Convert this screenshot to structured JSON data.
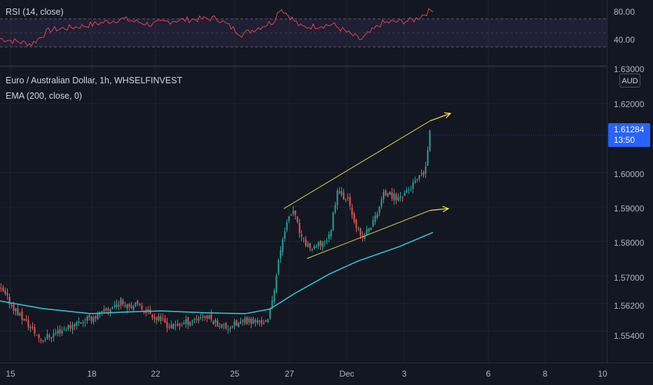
{
  "rsi_pane": {
    "title": "RSI (14, close)",
    "ticks": [
      {
        "label": "80.00",
        "value": 80
      },
      {
        "label": "40.00",
        "value": 40
      }
    ],
    "band": [
      30,
      70
    ],
    "midline": 50
  },
  "main_pane": {
    "title": "Euro / Australian Dollar, 1h, WHSELFINVEST",
    "indicator": "EMA (200, close, 0)",
    "currency": "AUD",
    "top_partial_tick": "1.63000",
    "price_ticks": [
      {
        "label": "1.62000",
        "value": 1.62
      },
      {
        "label": "1.60000",
        "value": 1.6
      },
      {
        "label": "1.59000",
        "value": 1.59
      },
      {
        "label": "1.58000",
        "value": 1.58
      },
      {
        "label": "1.57000",
        "value": 1.57
      },
      {
        "label": "1.56200",
        "value": 1.562
      },
      {
        "label": "1.55400",
        "value": 1.554
      }
    ],
    "last_price": "1.61284",
    "countdown": "13:50",
    "x_ticks": [
      "15",
      "18",
      "22",
      "25",
      "27",
      "Dec",
      "3",
      "6",
      "8",
      "10"
    ]
  },
  "colors": {
    "background": "#131722",
    "up_candle": "#26a69a",
    "down_candle": "#ef5350",
    "ema": "#2bc4d6",
    "rsi_line": "#e8424f",
    "rsi_band": "#7e57c2",
    "channel": "#d8d83a",
    "arrows": "#ffeb3b",
    "price_tag": "#2962ff"
  },
  "chart_data": {
    "type": "candlestick",
    "symbol": "EURAUD",
    "timeframe": "1h",
    "x_labels": [
      "15",
      "18",
      "22",
      "25",
      "27",
      "Dec",
      "3",
      "6",
      "8",
      "10"
    ],
    "y_range": [
      1.549,
      1.632
    ],
    "rsi_range": [
      27,
      92
    ],
    "close_path": [
      {
        "x": "15",
        "close": 1.565
      },
      {
        "x": "16",
        "close": 1.553
      },
      {
        "x": "17",
        "close": 1.556
      },
      {
        "x": "18",
        "close": 1.559
      },
      {
        "x": "19",
        "close": 1.562
      },
      {
        "x": "20",
        "close": 1.561
      },
      {
        "x": "22",
        "close": 1.56
      },
      {
        "x": "23",
        "close": 1.558
      },
      {
        "x": "24",
        "close": 1.56
      },
      {
        "x": "25",
        "close": 1.558
      },
      {
        "x": "26",
        "close": 1.562
      },
      {
        "x": "26.5",
        "close": 1.578
      },
      {
        "x": "27",
        "close": 1.59
      },
      {
        "x": "28",
        "close": 1.58
      },
      {
        "x": "29",
        "close": 1.579
      },
      {
        "x": "30",
        "close": 1.596
      },
      {
        "x": "Dec",
        "close": 1.581
      },
      {
        "x": "2",
        "close": 1.592
      },
      {
        "x": "3",
        "close": 1.598
      },
      {
        "x": "3.5",
        "close": 1.61284
      }
    ],
    "ema200_path": [
      1.5627,
      1.5605,
      1.559,
      1.5595,
      1.5598,
      1.5592,
      1.559,
      1.5603,
      1.5648,
      1.5705,
      1.5742,
      1.5785,
      1.5826
    ],
    "rsi_path": [
      42,
      34,
      54,
      60,
      70,
      62,
      68,
      71,
      48,
      66,
      86,
      58,
      62,
      40,
      64,
      68,
      84
    ],
    "channel_upper": [
      {
        "x": "27",
        "price": 1.5895
      },
      {
        "x": "3.5",
        "price": 1.615
      }
    ],
    "channel_lower": [
      {
        "x": "28",
        "price": 1.575
      },
      {
        "x": "3.5",
        "price": 1.589
      }
    ]
  }
}
